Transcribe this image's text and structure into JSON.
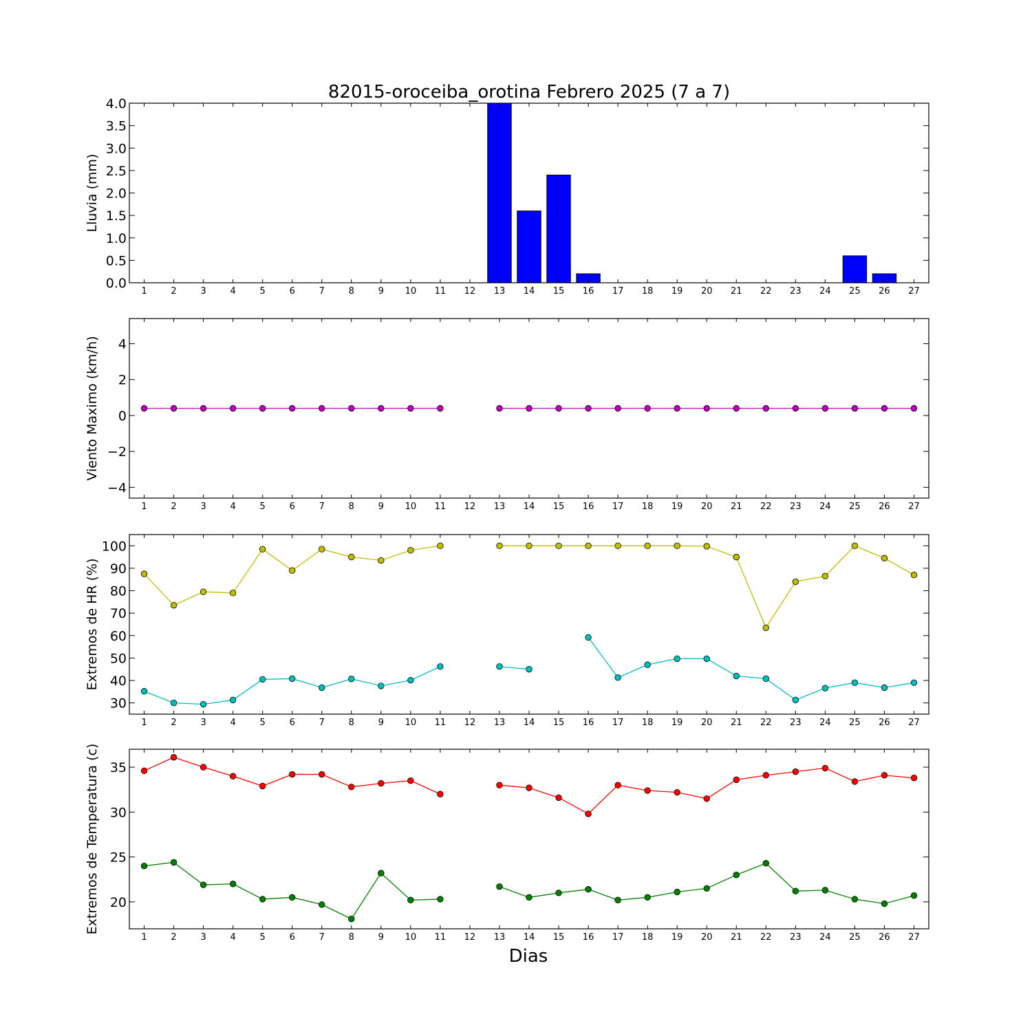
{
  "title": "82015-oroceiba_orotina Febrero 2025  (7 a 7)",
  "xlabel": "Dias",
  "days": [
    1,
    2,
    3,
    4,
    5,
    6,
    7,
    8,
    9,
    10,
    11,
    12,
    13,
    14,
    15,
    16,
    17,
    18,
    19,
    20,
    21,
    22,
    23,
    24,
    25,
    26,
    27
  ],
  "colors": {
    "rain": "#0000ff",
    "wind": "#bf00bf",
    "hr_max": "#bfbf00",
    "hr_min": "#00bfbf",
    "temp_max": "#ff0000",
    "temp_min": "#008000"
  },
  "chart_data": [
    {
      "type": "bar",
      "ylabel": "Lluvia (mm)",
      "ylim": [
        0,
        4.0
      ],
      "yticks": [
        "0.0",
        "0.5",
        "1.0",
        "1.5",
        "2.0",
        "2.5",
        "3.0",
        "3.5",
        "4.0"
      ],
      "x": [
        1,
        2,
        3,
        4,
        5,
        6,
        7,
        8,
        9,
        10,
        11,
        12,
        13,
        14,
        15,
        16,
        17,
        18,
        19,
        20,
        21,
        22,
        23,
        24,
        25,
        26,
        27
      ],
      "values": [
        0,
        0,
        0,
        0,
        0,
        0,
        0,
        0,
        0,
        0,
        0,
        0,
        4.0,
        1.6,
        2.4,
        0.2,
        0,
        0,
        0,
        0,
        0,
        0,
        0,
        0,
        0.6,
        0.2,
        0
      ]
    },
    {
      "type": "line",
      "ylabel": "Viento Maximo (km/h)",
      "ylim": [
        -4.6,
        5.4
      ],
      "yticks": [
        "−4",
        "−2",
        "0",
        "2",
        "4"
      ],
      "x": [
        1,
        2,
        3,
        4,
        5,
        6,
        7,
        8,
        9,
        10,
        11,
        12,
        13,
        14,
        15,
        16,
        17,
        18,
        19,
        20,
        21,
        22,
        23,
        24,
        25,
        26,
        27
      ],
      "series": [
        {
          "values": [
            0.4,
            0.4,
            0.4,
            0.4,
            0.4,
            0.4,
            0.4,
            0.4,
            0.4,
            0.4,
            0.4,
            null,
            0.4,
            0.4,
            0.4,
            0.4,
            0.4,
            0.4,
            0.4,
            0.4,
            0.4,
            0.4,
            0.4,
            0.4,
            0.4,
            0.4,
            0.4
          ]
        }
      ]
    },
    {
      "type": "line",
      "ylabel": "Extremos de HR (%)",
      "ylim": [
        25,
        105
      ],
      "yticks": [
        "30",
        "40",
        "50",
        "60",
        "70",
        "80",
        "90",
        "100"
      ],
      "x": [
        1,
        2,
        3,
        4,
        5,
        6,
        7,
        8,
        9,
        10,
        11,
        12,
        13,
        14,
        15,
        16,
        17,
        18,
        19,
        20,
        21,
        22,
        23,
        24,
        25,
        26,
        27
      ],
      "series": [
        {
          "values": [
            87.5,
            73.5,
            79.5,
            79,
            98.5,
            89,
            98.5,
            95,
            93.5,
            98,
            100,
            null,
            100,
            100,
            100,
            100,
            100,
            100,
            100,
            99.8,
            95,
            63.5,
            84,
            86.5,
            100,
            94.5,
            87
          ]
        },
        {
          "values": [
            35.2,
            30,
            29.4,
            31.3,
            40.5,
            40.8,
            36.8,
            40.7,
            37.6,
            40.1,
            46.2,
            null,
            46.2,
            45,
            null,
            59.2,
            41.3,
            47,
            49.7,
            49.7,
            42,
            40.8,
            31.3,
            36.6,
            39,
            36.8,
            39
          ]
        }
      ]
    },
    {
      "type": "line",
      "ylabel": "Extremos de Temperatura (c)",
      "ylim": [
        17,
        37
      ],
      "yticks": [
        "20",
        "25",
        "30",
        "35"
      ],
      "x": [
        1,
        2,
        3,
        4,
        5,
        6,
        7,
        8,
        9,
        10,
        11,
        12,
        13,
        14,
        15,
        16,
        17,
        18,
        19,
        20,
        21,
        22,
        23,
        24,
        25,
        26,
        27
      ],
      "series": [
        {
          "values": [
            34.6,
            36.1,
            35.0,
            34.0,
            32.9,
            34.2,
            34.2,
            32.8,
            33.2,
            33.5,
            32.0,
            null,
            33.0,
            32.7,
            31.6,
            29.8,
            33.0,
            32.4,
            32.2,
            31.5,
            33.6,
            34.1,
            34.5,
            34.9,
            33.4,
            34.1,
            33.8
          ]
        },
        {
          "values": [
            24.0,
            24.4,
            21.9,
            22.0,
            20.3,
            20.5,
            19.7,
            18.1,
            23.2,
            20.2,
            20.3,
            null,
            21.7,
            20.5,
            21.0,
            21.4,
            20.2,
            20.5,
            21.1,
            21.5,
            23.0,
            24.3,
            21.2,
            21.3,
            20.3,
            19.8,
            20.7
          ]
        }
      ]
    }
  ]
}
